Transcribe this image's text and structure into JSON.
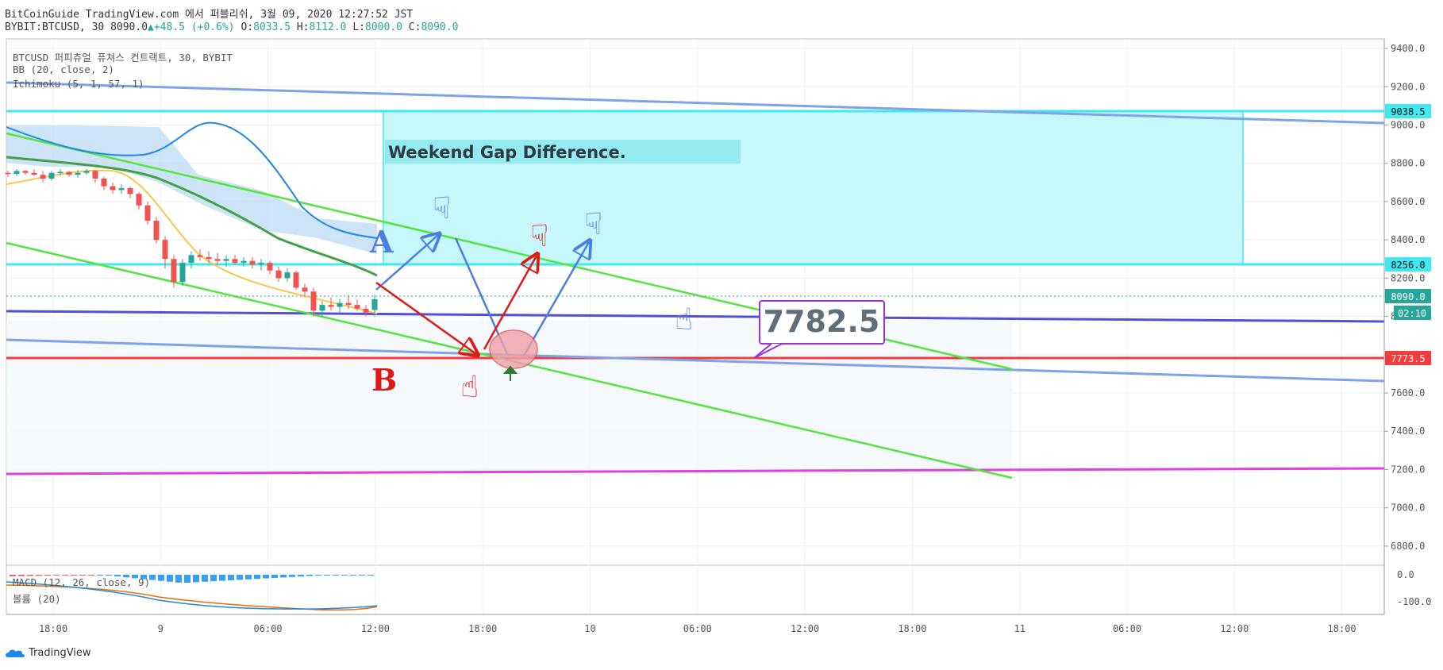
{
  "header": {
    "line1": "BitCoinGuide TradingView.com 에서 퍼블리쉬, 3월 09, 2020 12:27:52 JST",
    "symbol": "BYBIT:BTCUSD, 30",
    "last": "8090.0",
    "change": "+48.5 (+0.6%)",
    "o_label": "O:",
    "o": "8033.5",
    "h_label": "H:",
    "h": "8112.0",
    "l_label": "L:",
    "l": "8000.0",
    "c_label": "C:",
    "c": "8090.0"
  },
  "legend": {
    "symbol_desc": "BTCUSD 퍼피츄얼 퓨쳐스 컨트랙트, 30, BYBIT",
    "bb": "BB (20, close, 2)",
    "ichimoku": "Ichimoku (5, 1, 57, 1)",
    "macd": "MACD (12, 26, close, 9)",
    "volume": "볼륨 (20)"
  },
  "brand": {
    "name": "TradingView"
  },
  "annotations": {
    "gap_box_label": "Weekend Gap Difference.",
    "price_callout": "7782.5",
    "label_a": "A",
    "label_b": "B"
  },
  "price_labels": {
    "gap_top": "9038.5",
    "gap_bottom": "8256.0",
    "last_price": "8090.0",
    "countdown": "02:10",
    "support": "7773.5"
  },
  "colors": {
    "bull": "#26a69a",
    "bear": "#ef5350",
    "gap_fill": "#c3f7fa",
    "gap_line": "#40e8f0",
    "trend_blue": "#7fa3e8",
    "green": "#53e53f",
    "red_line": "#f03c3c",
    "purple_line": "#5050d8",
    "magenta": "#e040e0",
    "bb_blue": "#1e88e5",
    "ichi_green": "#43a047",
    "bb_yellow": "#f9c74f"
  },
  "chart_data": {
    "type": "line",
    "title": "",
    "y_ticks": [
      9400,
      9200,
      9000,
      8800,
      8600,
      8400,
      8200,
      8000,
      7800,
      7600,
      7400,
      7200,
      7000,
      6800
    ],
    "y_tick_labels": [
      "9400.0",
      "9200.0",
      "9000.0",
      "8800.0",
      "8600.0",
      "8400.0",
      "8200.0",
      "8000.0",
      "7800.0",
      "7600.0",
      "7400.0",
      "7200.0",
      "7000.0",
      "6800.0"
    ],
    "ylim": [
      6700,
      9450
    ],
    "x_ticks": [
      "18:00",
      "9",
      "06:00",
      "12:00",
      "18:00",
      "10",
      "06:00",
      "12:00",
      "18:00",
      "11",
      "06:00",
      "12:00",
      "18:00"
    ],
    "macd_ticks": [
      "0.0",
      "-100.0"
    ],
    "horizontal_levels": [
      {
        "name": "gap_top",
        "value": 9038.5
      },
      {
        "name": "gap_bottom",
        "value": 8256.0
      },
      {
        "name": "support",
        "value": 7773.5
      },
      {
        "name": "last",
        "value": 8090.0
      }
    ],
    "candles": [
      [
        8750,
        8760,
        8730,
        8745
      ],
      [
        8745,
        8770,
        8735,
        8760
      ],
      [
        8760,
        8765,
        8740,
        8750
      ],
      [
        8750,
        8770,
        8735,
        8740
      ],
      [
        8740,
        8760,
        8700,
        8720
      ],
      [
        8720,
        8760,
        8710,
        8750
      ],
      [
        8750,
        8770,
        8735,
        8755
      ],
      [
        8755,
        8760,
        8730,
        8740
      ],
      [
        8740,
        8765,
        8725,
        8750
      ],
      [
        8750,
        8770,
        8740,
        8760
      ],
      [
        8760,
        8765,
        8700,
        8720
      ],
      [
        8720,
        8730,
        8660,
        8680
      ],
      [
        8680,
        8700,
        8640,
        8660
      ],
      [
        8660,
        8690,
        8640,
        8670
      ],
      [
        8670,
        8680,
        8620,
        8640
      ],
      [
        8640,
        8650,
        8560,
        8580
      ],
      [
        8580,
        8600,
        8480,
        8500
      ],
      [
        8500,
        8520,
        8380,
        8400
      ],
      [
        8400,
        8420,
        8250,
        8300
      ],
      [
        8300,
        8320,
        8150,
        8180
      ],
      [
        8180,
        8300,
        8160,
        8280
      ],
      [
        8280,
        8340,
        8250,
        8320
      ],
      [
        8320,
        8350,
        8290,
        8310
      ],
      [
        8310,
        8340,
        8280,
        8300
      ],
      [
        8300,
        8330,
        8270,
        8290
      ],
      [
        8290,
        8320,
        8260,
        8300
      ],
      [
        8300,
        8320,
        8270,
        8280
      ],
      [
        8280,
        8310,
        8260,
        8290
      ],
      [
        8290,
        8310,
        8250,
        8270
      ],
      [
        8270,
        8300,
        8240,
        8280
      ],
      [
        8280,
        8290,
        8220,
        8240
      ],
      [
        8240,
        8260,
        8180,
        8200
      ],
      [
        8200,
        8250,
        8180,
        8230
      ],
      [
        8230,
        8240,
        8140,
        8150
      ],
      [
        8150,
        8170,
        8100,
        8130
      ],
      [
        8130,
        8150,
        8000,
        8030
      ],
      [
        8030,
        8080,
        8000,
        8060
      ],
      [
        8060,
        8100,
        8030,
        8050
      ],
      [
        8050,
        8090,
        8020,
        8070
      ],
      [
        8070,
        8110,
        8040,
        8060
      ],
      [
        8060,
        8090,
        8030,
        8040
      ],
      [
        8040,
        8060,
        8000,
        8020
      ],
      [
        8033.5,
        8112,
        8000,
        8090
      ]
    ]
  }
}
